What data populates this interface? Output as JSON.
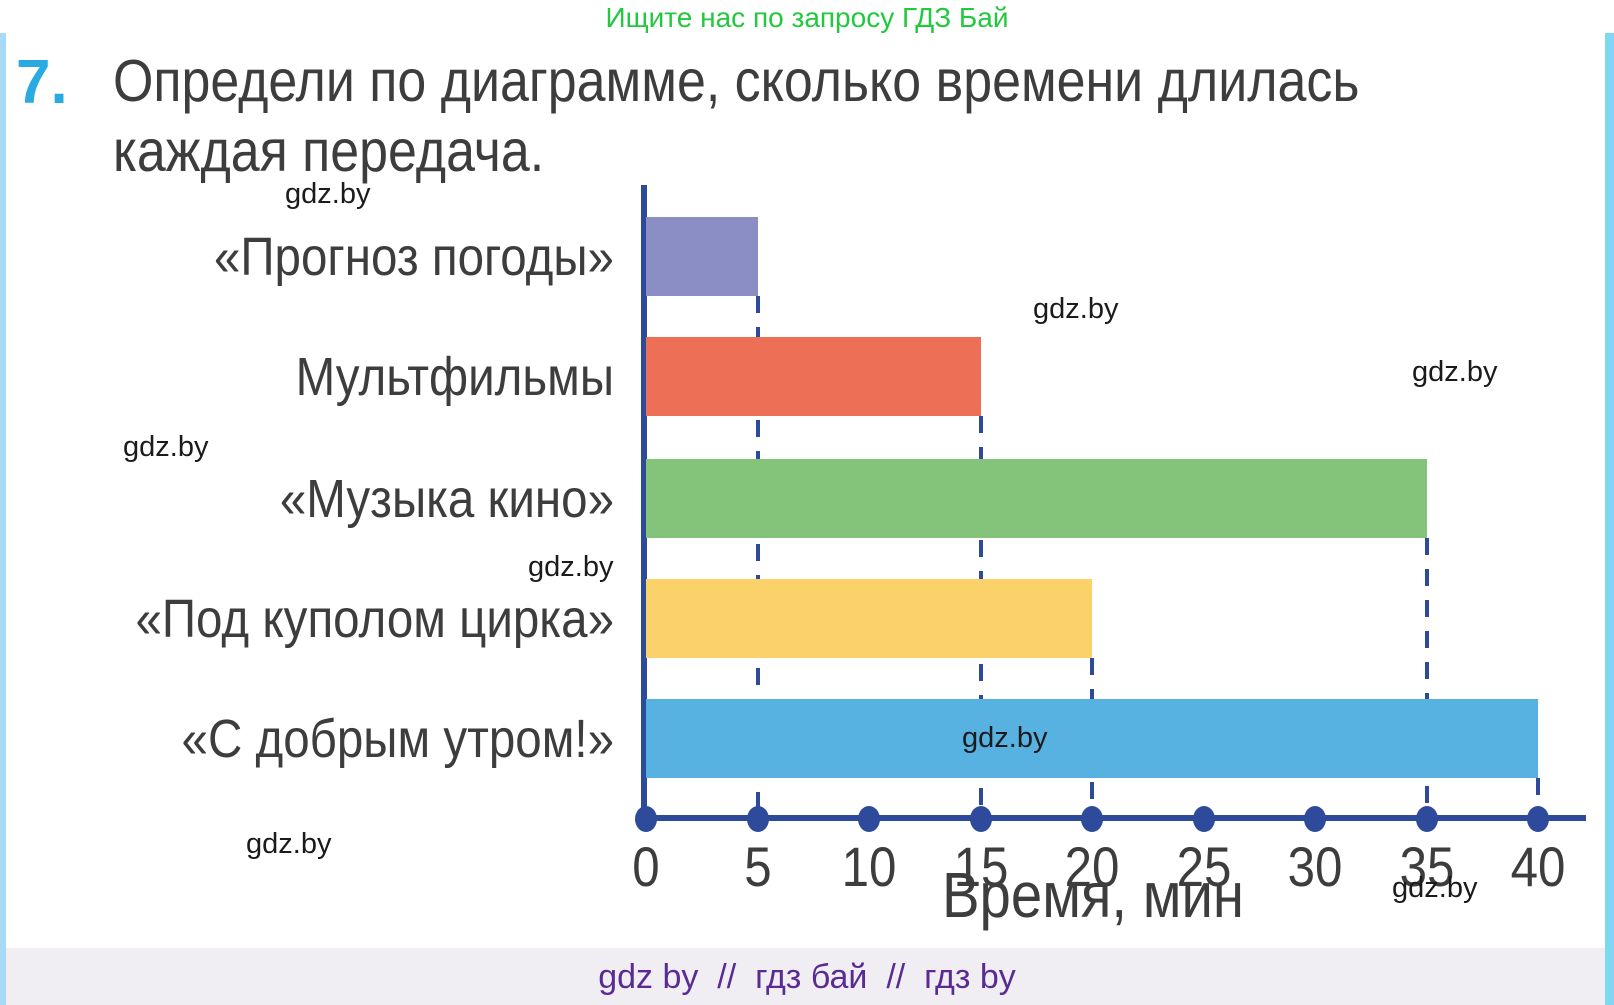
{
  "banner": {
    "text": "Ищите нас по запросу ГДЗ Бай"
  },
  "problem": {
    "number": "7.",
    "text_line1": "Определи по диаграмме, сколько времени длилась",
    "text_line2": "каждая передача."
  },
  "chart_data": {
    "type": "bar",
    "orientation": "horizontal",
    "categories": [
      "«Прогноз погоды»",
      "Мультфильмы",
      "«Музыка кино»",
      "«Под куполом цирка»",
      "«С добрым утром!»"
    ],
    "values": [
      5,
      15,
      35,
      20,
      40
    ],
    "unit": "мин",
    "xlabel": "Время, мин",
    "x_ticks": [
      0,
      5,
      10,
      15,
      20,
      25,
      30,
      35,
      40
    ],
    "xlim": [
      0,
      42
    ],
    "bar_colors": [
      "#8b8ec5",
      "#ec6f56",
      "#83c37a",
      "#fbd169",
      "#58b2e1"
    ],
    "axis_color": "#2e4a9b",
    "grid": "dashed guide lines from each bar end down to the axis",
    "legend": "none"
  },
  "watermark": {
    "text": "gdz.by",
    "count": 8
  },
  "footer": {
    "text": "gdz by  //  гдз бай  //  гдз by"
  },
  "colors": {
    "banner_green": "#22c93e",
    "problem_number_blue": "#29abe2",
    "text_dark": "#3d3d3d",
    "footer_purple": "#5b2b94",
    "left_strip_blue": "#a7daf5",
    "right_strip_cyan": "#7fd8f2",
    "footer_background": "#f0eef2"
  }
}
